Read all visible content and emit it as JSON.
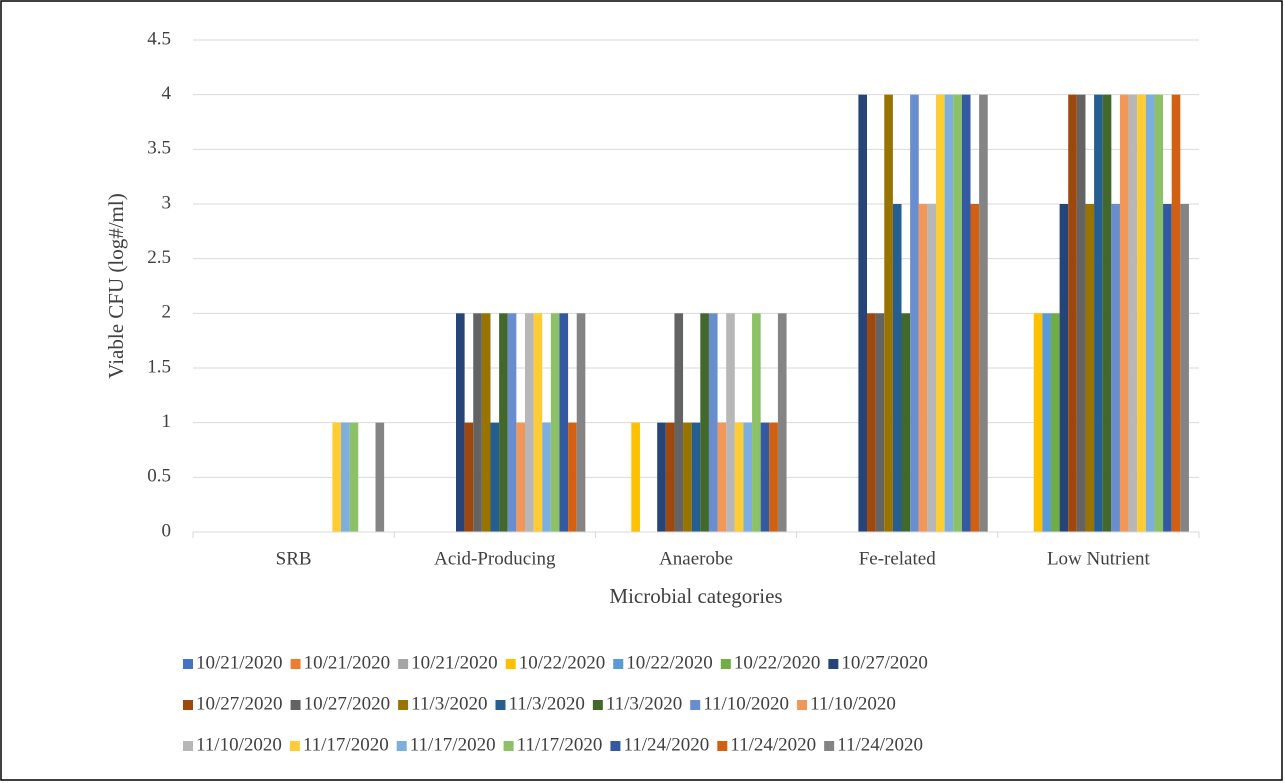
{
  "chart_data": {
    "type": "bar",
    "x_label": "Microbial categories",
    "y_label": "Viable CFU (log#/ml)",
    "categories": [
      "SRB",
      "Acid-Producing",
      "Anaerobe",
      "Fe-related",
      "Low Nutrient"
    ],
    "ylim": [
      0,
      4.5
    ],
    "yticks": [
      0,
      0.5,
      1,
      1.5,
      2,
      2.5,
      3,
      3.5,
      4,
      4.5
    ],
    "grid": true,
    "legend": "bottom",
    "series": [
      {
        "name": "10/21/2020",
        "color": "#4472c4",
        "values": [
          0,
          0,
          0,
          0,
          0
        ]
      },
      {
        "name": "10/21/2020",
        "color": "#ed7d31",
        "values": [
          0,
          0,
          0,
          0,
          0
        ]
      },
      {
        "name": "10/21/2020",
        "color": "#a5a5a5",
        "values": [
          0,
          0,
          0,
          0,
          0
        ]
      },
      {
        "name": "10/22/2020",
        "color": "#ffc000",
        "values": [
          0,
          0,
          1,
          0,
          2
        ]
      },
      {
        "name": "10/22/2020",
        "color": "#5b9bd5",
        "values": [
          0,
          0,
          0,
          0,
          2
        ]
      },
      {
        "name": "10/22/2020",
        "color": "#70ad47",
        "values": [
          0,
          0,
          0,
          0,
          2
        ]
      },
      {
        "name": "10/27/2020",
        "color": "#264478",
        "values": [
          0,
          2,
          1,
          4,
          3
        ]
      },
      {
        "name": "10/27/2020",
        "color": "#9e480e",
        "values": [
          0,
          1,
          1,
          2,
          4
        ]
      },
      {
        "name": "10/27/2020",
        "color": "#636363",
        "values": [
          0,
          2,
          2,
          2,
          4
        ]
      },
      {
        "name": "11/3/2020",
        "color": "#997300",
        "values": [
          0,
          2,
          1,
          4,
          3
        ]
      },
      {
        "name": "11/3/2020",
        "color": "#255e91",
        "values": [
          0,
          1,
          1,
          3,
          4
        ]
      },
      {
        "name": "11/3/2020",
        "color": "#43682b",
        "values": [
          0,
          2,
          2,
          2,
          4
        ]
      },
      {
        "name": "11/10/2020",
        "color": "#698ed0",
        "values": [
          0,
          2,
          2,
          4,
          3
        ]
      },
      {
        "name": "11/10/2020",
        "color": "#f1975a",
        "values": [
          0,
          1,
          1,
          3,
          4
        ]
      },
      {
        "name": "11/10/2020",
        "color": "#b7b7b7",
        "values": [
          0,
          2,
          2,
          3,
          4
        ]
      },
      {
        "name": "11/17/2020",
        "color": "#ffcd33",
        "values": [
          1,
          2,
          1,
          4,
          4
        ]
      },
      {
        "name": "11/17/2020",
        "color": "#7cafdd",
        "values": [
          1,
          1,
          1,
          4,
          4
        ]
      },
      {
        "name": "11/17/2020",
        "color": "#8cc168",
        "values": [
          1,
          2,
          2,
          4,
          4
        ]
      },
      {
        "name": "11/24/2020",
        "color": "#335aa1",
        "values": [
          0,
          2,
          1,
          4,
          3
        ]
      },
      {
        "name": "11/24/2020",
        "color": "#d26012",
        "values": [
          0,
          1,
          1,
          3,
          4
        ]
      },
      {
        "name": "11/24/2020",
        "color": "#848484",
        "values": [
          1,
          2,
          2,
          4,
          3
        ]
      }
    ]
  }
}
